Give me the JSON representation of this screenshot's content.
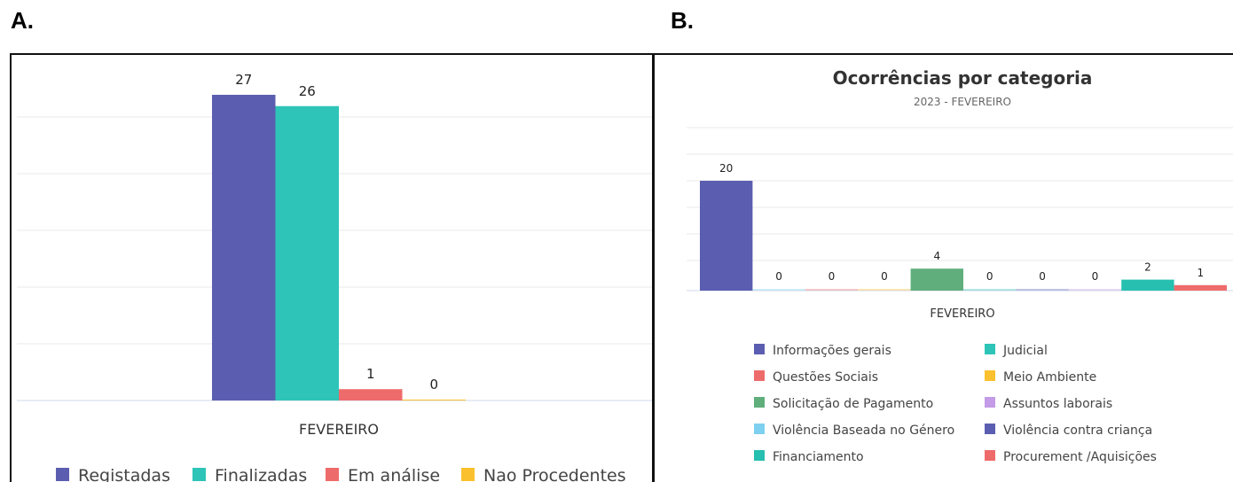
{
  "panels": {
    "a_label": "A.",
    "b_label": "B."
  },
  "chart_data": [
    {
      "type": "bar",
      "title": "",
      "categories": [
        "FEVEREIRO"
      ],
      "series": [
        {
          "name": "Registadas",
          "values": [
            27
          ],
          "color": "#5b5eb0"
        },
        {
          "name": "Finalizadas",
          "values": [
            26
          ],
          "color": "#2ec4b8"
        },
        {
          "name": "Em análise",
          "values": [
            1
          ],
          "color": "#ee6b6b"
        },
        {
          "name": "Nao Procedentes",
          "values": [
            0
          ],
          "color": "#fbc02d"
        }
      ],
      "ylim": [
        0,
        28
      ],
      "grid": true,
      "legend": "bottom"
    },
    {
      "type": "bar",
      "title": "Ocorrências por categoria",
      "subtitle": "2023 - FEVEREIRO",
      "categories": [
        "FEVEREIRO"
      ],
      "series": [
        {
          "name": "Informações gerais",
          "values": [
            20
          ],
          "color": "#5b5eb0"
        },
        {
          "name": "Violência Baseada no Género",
          "values": [
            0
          ],
          "color": "#7ed0f0"
        },
        {
          "name": "Questões Sociais",
          "values": [
            0
          ],
          "color": "#ee6b6b"
        },
        {
          "name": "Meio Ambiente",
          "values": [
            0
          ],
          "color": "#fbc02d"
        },
        {
          "name": "Solicitação de Pagamento",
          "values": [
            4
          ],
          "color": "#5fae7c"
        },
        {
          "name": "Judicial",
          "values": [
            0
          ],
          "color": "#2ec4b8"
        },
        {
          "name": "Violência contra criança",
          "values": [
            0
          ],
          "color": "#5b5eb0"
        },
        {
          "name": "Assuntos laborais",
          "values": [
            0
          ],
          "color": "#c39be6"
        },
        {
          "name": "Financiamento",
          "values": [
            2
          ],
          "color": "#26bfb0"
        },
        {
          "name": "Procurement /Aquisições",
          "values": [
            1
          ],
          "color": "#ee6b6b"
        }
      ],
      "legend_order": [
        "Informações gerais",
        "Judicial",
        "Questões Sociais",
        "Meio Ambiente",
        "Solicitação de Pagamento",
        "Assuntos laborais",
        "Violência Baseada no Género",
        "Violência contra criança",
        "Financiamento",
        "Procurement /Aquisições"
      ],
      "ylim": [
        0,
        21
      ],
      "grid": true,
      "legend": "bottom"
    }
  ]
}
